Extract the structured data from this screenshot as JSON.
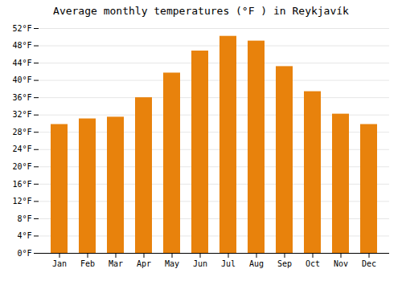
{
  "chart_data": {
    "type": "bar",
    "title": "Average monthly temperatures (°F ) in Reykjavík",
    "categories": [
      "Jan",
      "Feb",
      "Mar",
      "Apr",
      "May",
      "Jun",
      "Jul",
      "Aug",
      "Sep",
      "Oct",
      "Nov",
      "Dec"
    ],
    "values": [
      29.8,
      31.1,
      31.5,
      36.0,
      41.7,
      46.8,
      50.2,
      49.1,
      43.2,
      37.4,
      32.2,
      29.8
    ],
    "color": "#E8820C",
    "ylim": [
      0,
      52
    ],
    "yticks": [
      {
        "value": 0,
        "label": "0°F"
      },
      {
        "value": 4,
        "label": "4°F"
      },
      {
        "value": 8,
        "label": "8°F"
      },
      {
        "value": 12,
        "label": "12°F"
      },
      {
        "value": 16,
        "label": "16°F"
      },
      {
        "value": 20,
        "label": "20°F"
      },
      {
        "value": 24,
        "label": "24°F"
      },
      {
        "value": 28,
        "label": "28°F"
      },
      {
        "value": 32,
        "label": "32°F"
      },
      {
        "value": 36,
        "label": "36°F"
      },
      {
        "value": 40,
        "label": "40°F"
      },
      {
        "value": 44,
        "label": "44°F"
      },
      {
        "value": 48,
        "label": "48°F"
      },
      {
        "value": 52,
        "label": "52°F"
      }
    ],
    "grid": true
  }
}
